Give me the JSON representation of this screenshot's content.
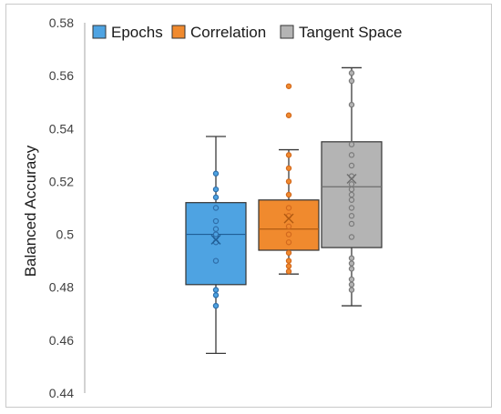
{
  "chart_data": {
    "type": "box",
    "ylabel": "Balanced Accuracy",
    "xlabel": "",
    "ylim": [
      0.44,
      0.58
    ],
    "yticks": [
      0.44,
      0.46,
      0.48,
      0.5,
      0.52,
      0.54,
      0.56,
      0.58
    ],
    "ytick_labels": [
      "0.44",
      "0.46",
      "0.48",
      "0.5",
      "0.52",
      "0.54",
      "0.56",
      "0.58"
    ],
    "legend_position": "top",
    "grid": false,
    "series": [
      {
        "name": "Epochs",
        "color": "#4EA3E2",
        "edge_color": "#1F5E96",
        "dot_color": "#2E6DA8",
        "min": 0.455,
        "q1": 0.481,
        "median": 0.5,
        "q3": 0.512,
        "max": 0.537,
        "mean": 0.498,
        "points": [
          0.473,
          0.477,
          0.479,
          0.49,
          0.497,
          0.499,
          0.5,
          0.502,
          0.505,
          0.51,
          0.514,
          0.517,
          0.523
        ]
      },
      {
        "name": "Correlation",
        "color": "#F08A2E",
        "edge_color": "#B05A12",
        "dot_color": "#D2691E",
        "min": 0.485,
        "q1": 0.494,
        "median": 0.502,
        "q3": 0.513,
        "max": 0.532,
        "mean": 0.506,
        "points": [
          0.486,
          0.488,
          0.49,
          0.493,
          0.497,
          0.5,
          0.503,
          0.507,
          0.51,
          0.515,
          0.52,
          0.525,
          0.53,
          0.545,
          0.556
        ]
      },
      {
        "name": "Tangent Space",
        "color": "#B4B4B4",
        "edge_color": "#6E6E6E",
        "dot_color": "#7A7A7A",
        "min": 0.473,
        "q1": 0.495,
        "median": 0.518,
        "q3": 0.535,
        "max": 0.563,
        "mean": 0.521,
        "points": [
          0.479,
          0.481,
          0.483,
          0.487,
          0.489,
          0.491,
          0.499,
          0.504,
          0.507,
          0.51,
          0.513,
          0.515,
          0.517,
          0.519,
          0.522,
          0.526,
          0.53,
          0.534,
          0.549,
          0.558,
          0.561
        ]
      }
    ]
  }
}
